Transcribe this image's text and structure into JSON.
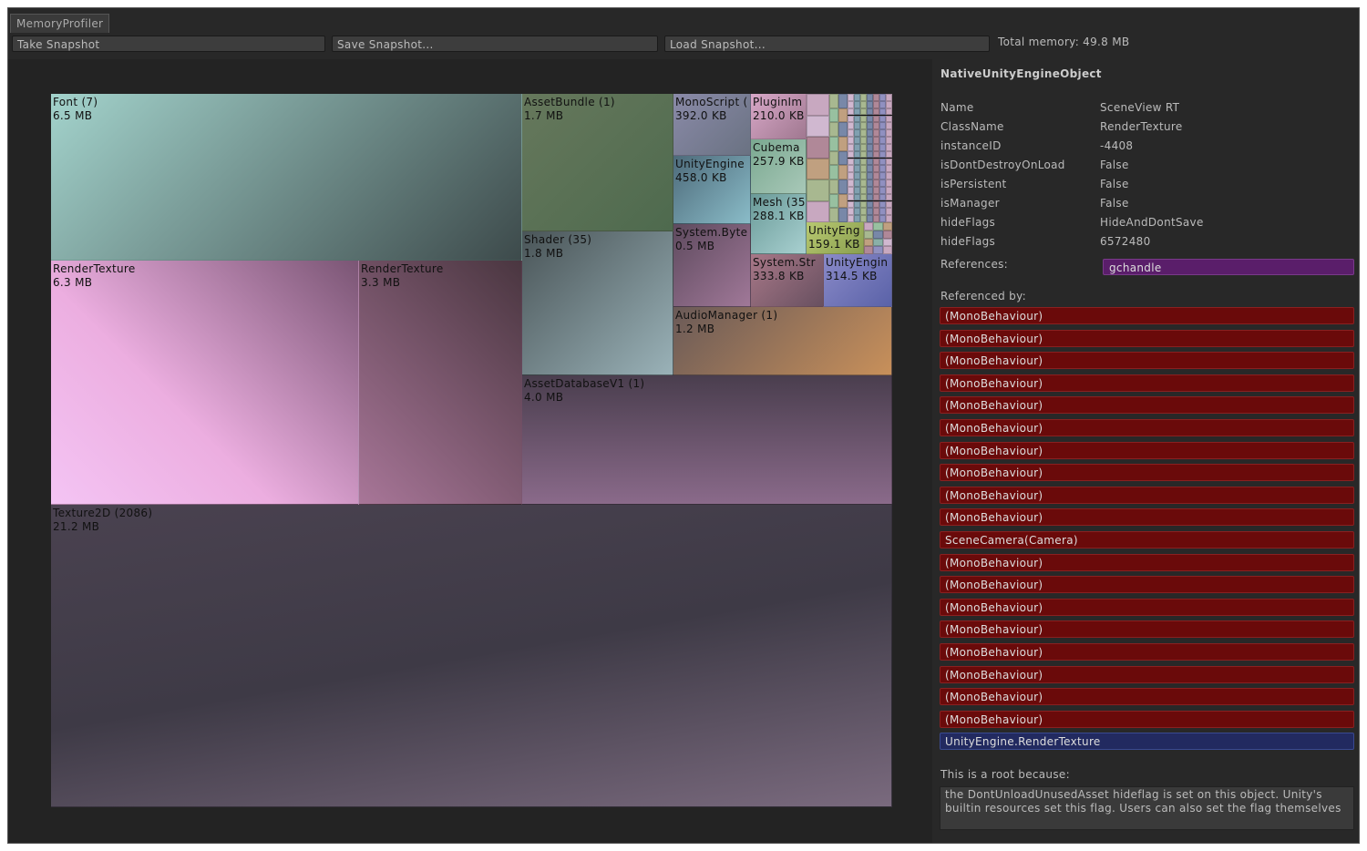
{
  "window": {
    "tab": "MemoryProfiler"
  },
  "toolbar": {
    "buttons": [
      "Take Snapshot",
      "Save Snapshot...",
      "Load Snapshot..."
    ],
    "total": "Total memory: 49.8 MB"
  },
  "treemap": {
    "cells": [
      {
        "name": "Font (7)",
        "size": "6.5 MB"
      },
      {
        "name": "RenderTexture",
        "size": "6.3 MB"
      },
      {
        "name": "RenderTexture",
        "size": "3.3 MB"
      },
      {
        "name": "AssetBundle (1)",
        "size": "1.7 MB"
      },
      {
        "name": "Shader (35)",
        "size": "1.8 MB"
      },
      {
        "name": "MonoScript (",
        "size": "392.0 KB"
      },
      {
        "name": "UnityEngine",
        "size": "458.0 KB"
      },
      {
        "name": "System.Byte",
        "size": "0.5 MB"
      },
      {
        "name": "PluginIm",
        "size": "210.0 KB"
      },
      {
        "name": "Cubema",
        "size": "257.9 KB"
      },
      {
        "name": "Mesh (35",
        "size": "288.1 KB"
      },
      {
        "name": "UnityEng",
        "size": "159.1 KB"
      },
      {
        "name": "System.Str",
        "size": "333.8 KB"
      },
      {
        "name": "UnityEngin",
        "size": "314.5 KB"
      },
      {
        "name": "AudioManager (1)",
        "size": "1.2 MB"
      },
      {
        "name": "AssetDatabaseV1 (1)",
        "size": "4.0 MB"
      },
      {
        "name": "Texture2D (2086)",
        "size": "21.2 MB"
      }
    ]
  },
  "inspector": {
    "title": "NativeUnityEngineObject",
    "fields": [
      [
        "Name",
        "SceneView RT"
      ],
      [
        "ClassName",
        "RenderTexture"
      ],
      [
        "instanceID",
        "-4408"
      ],
      [
        "isDontDestroyOnLoad",
        "False"
      ],
      [
        "isPersistent",
        "False"
      ],
      [
        "isManager",
        "False"
      ],
      [
        "hideFlags",
        "HideAndDontSave"
      ],
      [
        "hideFlags",
        "6572480"
      ]
    ],
    "references_label": "References:",
    "references": [
      "gchandle"
    ],
    "referenced_by_label": "Referenced by:",
    "referenced_by": [
      "(MonoBehaviour)",
      "(MonoBehaviour)",
      "(MonoBehaviour)",
      "(MonoBehaviour)",
      "(MonoBehaviour)",
      "(MonoBehaviour)",
      "(MonoBehaviour)",
      "(MonoBehaviour)",
      "(MonoBehaviour)",
      "(MonoBehaviour)",
      "SceneCamera(Camera)",
      "(MonoBehaviour)",
      "(MonoBehaviour)",
      "(MonoBehaviour)",
      "(MonoBehaviour)",
      "(MonoBehaviour)",
      "(MonoBehaviour)",
      "(MonoBehaviour)",
      "(MonoBehaviour)",
      "UnityEngine.RenderTexture"
    ],
    "root_label": "This is a root because:",
    "root_reason": "the DontUnloadUnusedAsset hideflag is set on this object. Unity's builtin resources set this flag. Users can also set the flag themselves"
  }
}
